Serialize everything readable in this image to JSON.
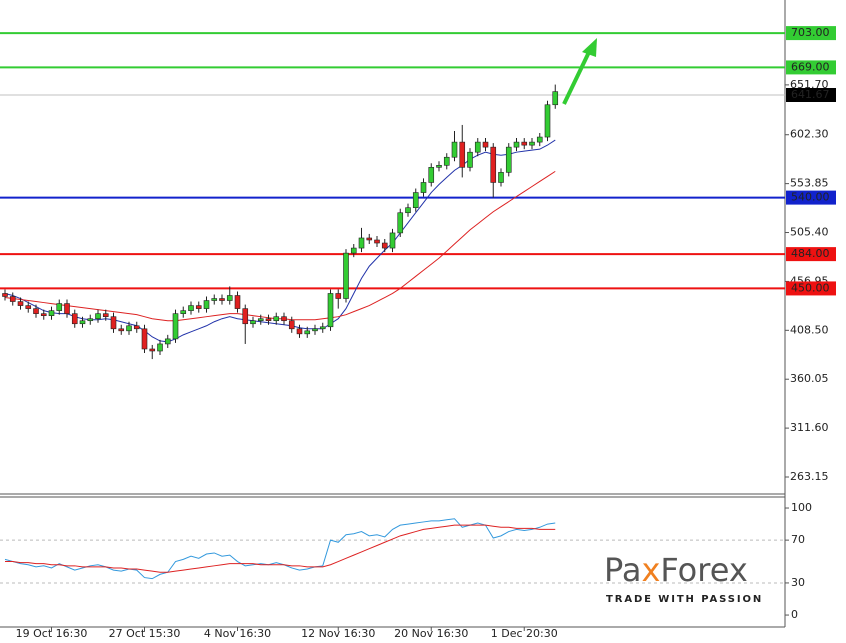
{
  "chart_data": [
    {
      "type": "candlestick",
      "categories": [
        null,
        null,
        null,
        null,
        null,
        null,
        "19 Oct 16:30",
        null,
        null,
        null,
        null,
        null,
        null,
        null,
        null,
        null,
        null,
        null,
        "27 Oct 15:30",
        null,
        null,
        null,
        null,
        null,
        null,
        null,
        null,
        null,
        null,
        null,
        "4 Nov 16:30",
        null,
        null,
        null,
        null,
        null,
        null,
        null,
        null,
        null,
        null,
        null,
        null,
        "12 Nov 16:30",
        null,
        null,
        null,
        null,
        null,
        null,
        null,
        null,
        null,
        null,
        null,
        "20 Nov 16:30",
        null,
        null,
        null,
        null,
        null,
        null,
        null,
        null,
        null,
        null,
        null,
        "1 Dec 20:30",
        null,
        null,
        null,
        null
      ],
      "open": [
        445,
        442,
        437,
        433,
        430,
        425,
        423,
        428,
        435,
        425,
        415,
        418,
        420,
        425,
        422,
        410,
        408,
        413,
        410,
        390,
        388,
        395,
        400,
        425,
        428,
        433,
        430,
        438,
        440,
        438,
        443,
        430,
        415,
        418,
        420,
        418,
        422,
        418,
        410,
        405,
        408,
        410,
        412,
        445,
        440,
        485,
        490,
        500,
        498,
        495,
        490,
        505,
        525,
        530,
        545,
        555,
        570,
        572,
        580,
        595,
        570,
        585,
        595,
        590,
        555,
        565,
        590,
        595,
        592,
        595,
        600,
        632
      ],
      "high": [
        449,
        446,
        441,
        437,
        434,
        429,
        432,
        439,
        439,
        429,
        422,
        424,
        429,
        429,
        426,
        414,
        417,
        417,
        414,
        394,
        399,
        404,
        429,
        432,
        437,
        437,
        442,
        444,
        444,
        452,
        447,
        434,
        422,
        424,
        424,
        426,
        426,
        422,
        414,
        412,
        414,
        416,
        449,
        449,
        489,
        494,
        510,
        504,
        502,
        499,
        509,
        529,
        534,
        549,
        559,
        574,
        576,
        584,
        606,
        612,
        589,
        599,
        599,
        594,
        569,
        594,
        599,
        599,
        599,
        604,
        636,
        652
      ],
      "low": [
        438,
        433,
        429,
        426,
        421,
        419,
        419,
        424,
        421,
        411,
        411,
        414,
        416,
        418,
        406,
        404,
        404,
        406,
        386,
        380,
        384,
        391,
        396,
        421,
        424,
        426,
        426,
        434,
        434,
        434,
        426,
        395,
        411,
        414,
        414,
        414,
        414,
        406,
        401,
        401,
        404,
        406,
        408,
        430,
        436,
        481,
        486,
        494,
        491,
        486,
        486,
        501,
        521,
        526,
        541,
        551,
        566,
        568,
        576,
        560,
        566,
        581,
        586,
        540,
        551,
        561,
        586,
        588,
        588,
        591,
        596,
        628
      ],
      "close": [
        442,
        437,
        433,
        430,
        425,
        423,
        428,
        435,
        425,
        415,
        418,
        420,
        425,
        422,
        410,
        408,
        413,
        410,
        390,
        388,
        395,
        400,
        425,
        428,
        433,
        430,
        438,
        440,
        438,
        443,
        430,
        415,
        418,
        420,
        418,
        422,
        418,
        410,
        405,
        408,
        410,
        412,
        445,
        440,
        485,
        490,
        500,
        498,
        495,
        490,
        505,
        525,
        530,
        545,
        555,
        570,
        572,
        580,
        595,
        570,
        585,
        595,
        590,
        555,
        565,
        590,
        595,
        592,
        595,
        600,
        632,
        645
      ],
      "up_color": "#33cc33",
      "down_color": "#e02020",
      "lines": [
        {
          "color": "#2233aa",
          "values": [
            445,
            443,
            440,
            436,
            432,
            428,
            426,
            425,
            425,
            422,
            420,
            419,
            419,
            420,
            419,
            417,
            415,
            413,
            408,
            402,
            398,
            397,
            400,
            404,
            407,
            410,
            413,
            417,
            420,
            422,
            420,
            419,
            418,
            417,
            416,
            415,
            414,
            413,
            411,
            410,
            410,
            410,
            415,
            420,
            430,
            445,
            460,
            472,
            480,
            488,
            495,
            505,
            515,
            525,
            535,
            545,
            553,
            560,
            567,
            572,
            578,
            582,
            585,
            583,
            582,
            583,
            585,
            586,
            587,
            588,
            592,
            597
          ]
        },
        {
          "color": "#dd2222",
          "values": [
            441,
            440,
            439,
            438,
            437,
            436,
            435,
            434,
            433,
            432,
            431,
            430,
            429,
            428,
            427,
            426,
            425,
            424,
            422,
            420,
            419,
            418,
            418,
            419,
            420,
            421,
            422,
            423,
            424,
            425,
            425,
            424,
            423,
            422,
            421,
            420,
            420,
            419,
            419,
            419,
            419,
            420,
            421,
            422,
            424,
            427,
            430,
            433,
            437,
            441,
            445,
            450,
            456,
            462,
            468,
            474,
            480,
            487,
            494,
            501,
            508,
            514,
            520,
            526,
            531,
            536,
            541,
            546,
            551,
            556,
            561,
            566
          ]
        }
      ],
      "ylim": [
        247.3,
        735.8
      ],
      "yticks": [
        263.15,
        {
          "value": 311.6,
          "label": "311.60"
        },
        360.05,
        {
          "value": 408.5,
          "label": "408.50"
        },
        456.95,
        {
          "value": 505.4,
          "label": "505.40"
        },
        553.85,
        {
          "value": 602.3,
          "label": "602.30"
        },
        {
          "value": 651.7,
          "label": "651.70"
        }
      ],
      "levels": [
        {
          "value": 703,
          "label": "703.00",
          "color": "#33cc33",
          "text_color": "#222222"
        },
        {
          "value": 669,
          "label": "669.00",
          "color": "#33cc33",
          "text_color": "#222222"
        },
        {
          "value": 540,
          "label": "540.00",
          "color": "#1122cc",
          "text_color": "#ffffff"
        },
        {
          "value": 484,
          "label": "484.00",
          "color": "#ee1111",
          "text_color": "#ffffff"
        },
        {
          "value": 450,
          "label": "450.00",
          "color": "#ee1111",
          "text_color": "#ffffff"
        }
      ],
      "current_price": {
        "value": 641.67,
        "color": "#000000",
        "line_color": "#c0c0c0"
      }
    },
    {
      "type": "line",
      "series": [
        {
          "color": "#3399dd",
          "values": [
            52,
            50,
            48,
            47,
            45,
            46,
            44,
            48,
            45,
            42,
            44,
            46,
            47,
            45,
            42,
            41,
            43,
            42,
            35,
            34,
            38,
            40,
            50,
            52,
            55,
            53,
            57,
            58,
            55,
            56,
            50,
            46,
            47,
            48,
            47,
            49,
            47,
            44,
            42,
            43,
            45,
            46,
            70,
            68,
            75,
            76,
            78,
            74,
            75,
            73,
            80,
            84,
            85,
            86,
            87,
            88,
            88,
            89,
            90,
            82,
            84,
            86,
            84,
            72,
            74,
            78,
            80,
            79,
            80,
            82,
            85,
            86
          ]
        },
        {
          "color": "#dd2222",
          "values": [
            50,
            50,
            49,
            49,
            48,
            48,
            47,
            47,
            46,
            46,
            45,
            45,
            45,
            45,
            44,
            44,
            43,
            43,
            42,
            41,
            40,
            40,
            41,
            42,
            43,
            44,
            45,
            46,
            47,
            48,
            48,
            48,
            48,
            47,
            47,
            47,
            47,
            46,
            46,
            45,
            45,
            45,
            47,
            50,
            53,
            56,
            59,
            62,
            65,
            68,
            71,
            74,
            76,
            78,
            80,
            81,
            82,
            83,
            84,
            84,
            84,
            84,
            84,
            83,
            82,
            82,
            81,
            81,
            81,
            80,
            80,
            80
          ]
        }
      ],
      "ylim": [
        -9.3,
        110.3
      ],
      "yticks": [
        100,
        70,
        30,
        0
      ],
      "levels": [
        70,
        30
      ]
    }
  ],
  "logo": {
    "brand": [
      "Pa",
      "x",
      "Forex"
    ],
    "tagline": "TRADE WITH PASSION"
  }
}
